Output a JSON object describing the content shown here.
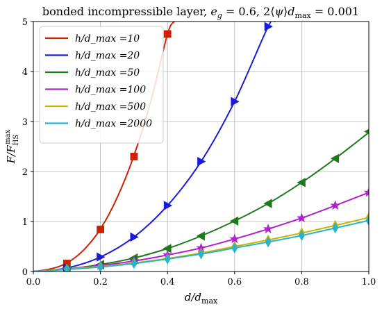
{
  "chart_data": {
    "type": "line",
    "title": "bonded incompressible layer, e_g = 0.6, 2⟨ψ⟩d_max = 0.001",
    "xlabel": "d/d_max",
    "ylabel": "F/F_HS^max",
    "xlim": [
      0.0,
      1.0
    ],
    "ylim": [
      0,
      5
    ],
    "xticks": [
      "0.0",
      "0.2",
      "0.4",
      "0.6",
      "0.8",
      "1.0"
    ],
    "yticks": [
      "0",
      "1",
      "2",
      "3",
      "4",
      "5"
    ],
    "grid": true,
    "legend_position": "top-left",
    "series": [
      {
        "name": "h/d_max =10",
        "color": "#cc2200",
        "marker": "square",
        "curve": {
          "x": [
            0.0,
            0.05,
            0.1,
            0.15,
            0.2,
            0.25,
            0.3,
            0.35,
            0.4,
            0.42
          ],
          "y": [
            0.0,
            0.05,
            0.17,
            0.43,
            0.85,
            1.48,
            2.32,
            3.4,
            4.75,
            5.0
          ]
        },
        "markers": {
          "x": [
            0.1,
            0.2,
            0.3,
            0.4
          ],
          "y": [
            0.16,
            0.84,
            2.3,
            4.75
          ]
        }
      },
      {
        "name": "h/d_max =20",
        "color": "#1a1adc",
        "marker": "triangle-right",
        "curve": {
          "x": [
            0.0,
            0.1,
            0.2,
            0.3,
            0.4,
            0.5,
            0.6,
            0.7,
            0.72
          ],
          "y": [
            0.0,
            0.07,
            0.29,
            0.69,
            1.32,
            2.2,
            3.4,
            4.9,
            5.0
          ]
        },
        "markers": {
          "x": [
            0.1,
            0.2,
            0.3,
            0.4,
            0.5,
            0.6,
            0.7
          ],
          "y": [
            0.07,
            0.29,
            0.69,
            1.32,
            2.2,
            3.4,
            4.9
          ]
        }
      },
      {
        "name": "h/d_max =50",
        "color": "#1c7a1c",
        "marker": "triangle-left",
        "curve": {
          "x": [
            0.0,
            0.1,
            0.2,
            0.3,
            0.4,
            0.5,
            0.6,
            0.7,
            0.8,
            0.9,
            1.0
          ],
          "y": [
            0.0,
            0.05,
            0.14,
            0.27,
            0.46,
            0.71,
            1.01,
            1.36,
            1.78,
            2.26,
            2.78
          ]
        },
        "markers": {
          "x": [
            0.1,
            0.2,
            0.3,
            0.4,
            0.5,
            0.6,
            0.7,
            0.8,
            0.9,
            1.0
          ],
          "y": [
            0.05,
            0.14,
            0.27,
            0.46,
            0.71,
            1.01,
            1.36,
            1.78,
            2.26,
            2.8
          ]
        }
      },
      {
        "name": "h/d_max =100",
        "color": "#b020d0",
        "marker": "star",
        "curve": {
          "x": [
            0.0,
            0.1,
            0.2,
            0.3,
            0.4,
            0.5,
            0.6,
            0.7,
            0.8,
            0.9,
            1.0
          ],
          "y": [
            0.0,
            0.05,
            0.12,
            0.21,
            0.33,
            0.47,
            0.65,
            0.85,
            1.07,
            1.32,
            1.58
          ]
        },
        "markers": {
          "x": [
            0.1,
            0.2,
            0.3,
            0.4,
            0.5,
            0.6,
            0.7,
            0.8,
            0.9,
            1.0
          ],
          "y": [
            0.05,
            0.12,
            0.21,
            0.33,
            0.47,
            0.65,
            0.85,
            1.07,
            1.32,
            1.58
          ]
        }
      },
      {
        "name": "h/d_max =500",
        "color": "#c8b400",
        "marker": "thin-diamond",
        "curve": {
          "x": [
            0.0,
            0.1,
            0.2,
            0.3,
            0.4,
            0.5,
            0.6,
            0.7,
            0.8,
            0.9,
            1.0
          ],
          "y": [
            0.0,
            0.05,
            0.1,
            0.17,
            0.26,
            0.37,
            0.5,
            0.63,
            0.77,
            0.92,
            1.08
          ]
        },
        "markers": {
          "x": [
            0.1,
            0.2,
            0.3,
            0.4,
            0.5,
            0.6,
            0.7,
            0.8,
            0.9,
            1.0
          ],
          "y": [
            0.05,
            0.1,
            0.17,
            0.26,
            0.37,
            0.5,
            0.63,
            0.77,
            0.92,
            1.08
          ]
        }
      },
      {
        "name": "h/d_max =2000",
        "color": "#2ab4c8",
        "marker": "thin-diamond",
        "curve": {
          "x": [
            0.0,
            0.1,
            0.2,
            0.3,
            0.4,
            0.5,
            0.6,
            0.7,
            0.8,
            0.9,
            1.0
          ],
          "y": [
            0.0,
            0.04,
            0.09,
            0.16,
            0.25,
            0.35,
            0.47,
            0.59,
            0.72,
            0.87,
            1.02
          ]
        },
        "markers": {
          "x": [
            0.1,
            0.2,
            0.3,
            0.4,
            0.5,
            0.6,
            0.7,
            0.8,
            0.9,
            1.0
          ],
          "y": [
            0.04,
            0.09,
            0.16,
            0.25,
            0.35,
            0.47,
            0.59,
            0.72,
            0.87,
            1.02
          ]
        }
      }
    ]
  }
}
